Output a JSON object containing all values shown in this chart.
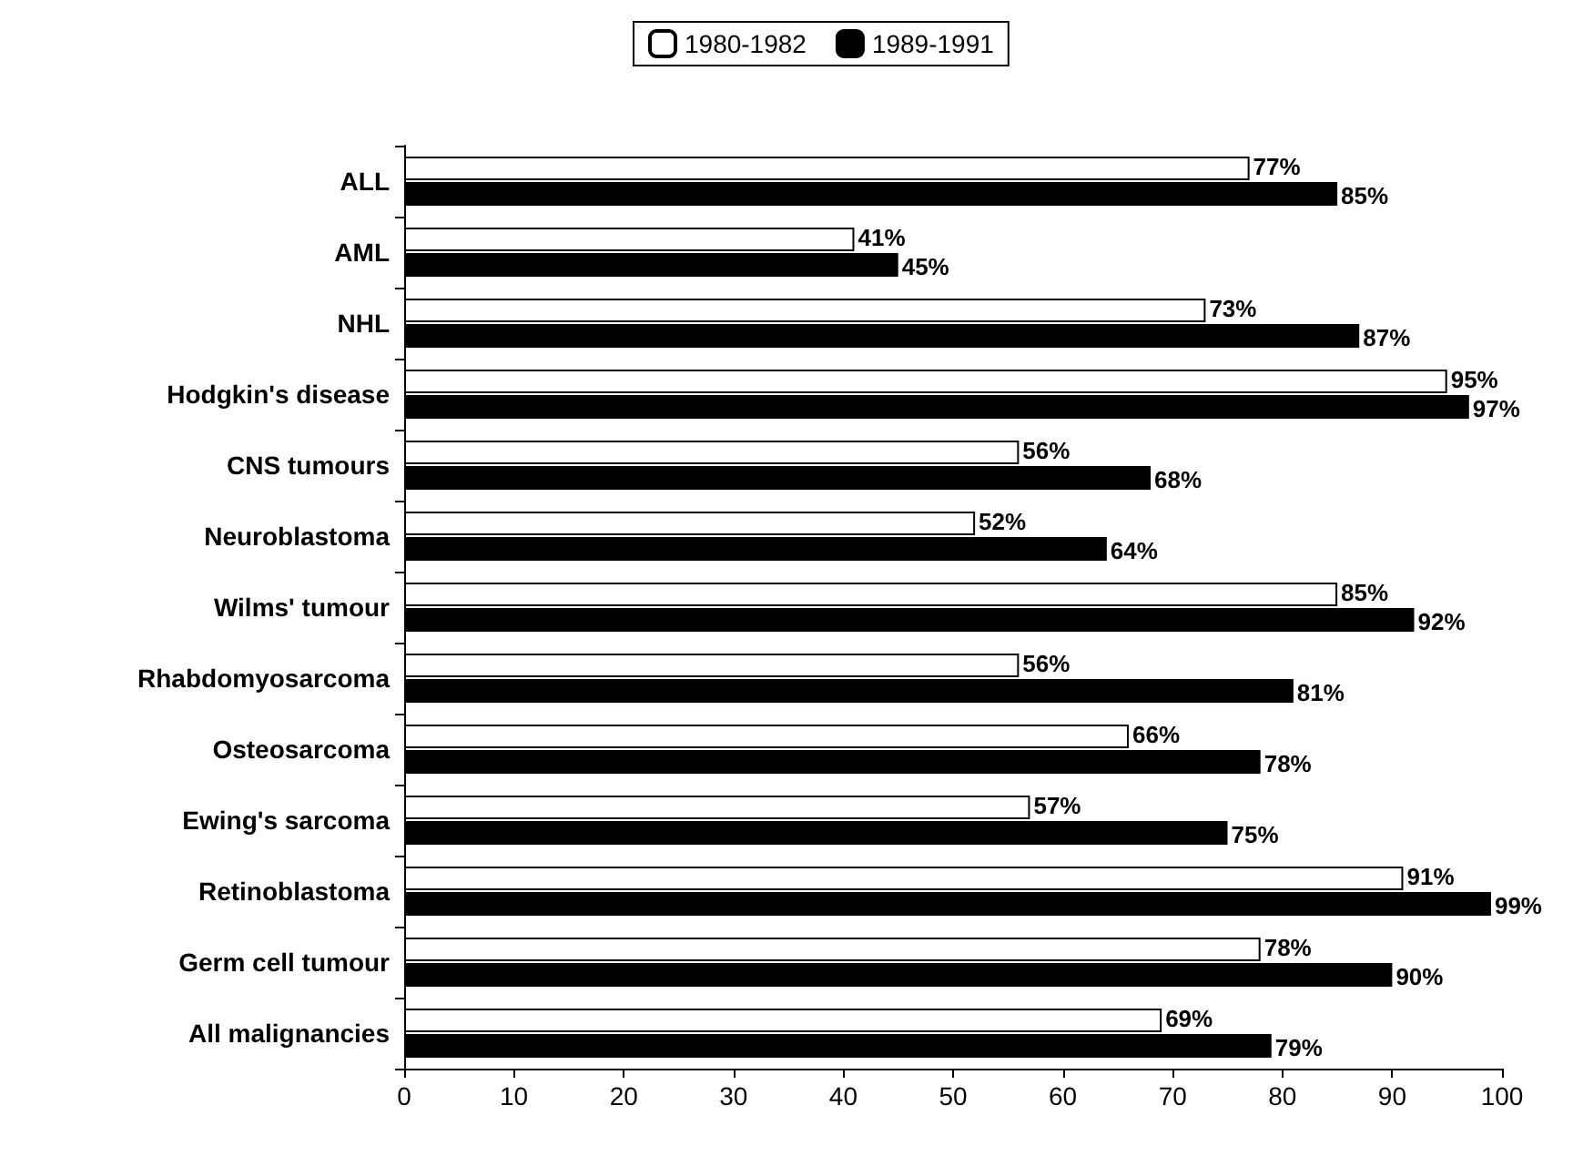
{
  "chart_data": {
    "type": "bar",
    "orientation": "horizontal",
    "categories": [
      "ALL",
      "AML",
      "NHL",
      "Hodgkin's disease",
      "CNS tumours",
      "Neuroblastoma",
      "Wilms' tumour",
      "Rhabdomyosarcoma",
      "Osteosarcoma",
      "Ewing's sarcoma",
      "Retinoblastoma",
      "Germ cell tumour",
      "All malignancies"
    ],
    "series": [
      {
        "name": "1980-1982",
        "color": "#ffffff",
        "values": [
          77,
          41,
          73,
          95,
          56,
          52,
          85,
          56,
          66,
          57,
          91,
          78,
          69
        ],
        "value_labels": [
          "77%",
          "41%",
          "73%",
          "95%",
          "56%",
          "52%",
          "85%",
          "56%",
          "66%",
          "57%",
          "91%",
          "78%",
          "69%"
        ]
      },
      {
        "name": "1989-1991",
        "color": "#000000",
        "values": [
          85,
          45,
          87,
          97,
          68,
          64,
          92,
          81,
          78,
          75,
          99,
          90,
          79
        ],
        "value_labels": [
          "85%",
          "45%",
          "87%",
          "97%",
          "68%",
          "64%",
          "92%",
          "81%",
          "78%",
          "75%",
          "99%",
          "90%",
          "79%"
        ]
      }
    ],
    "xlim": [
      0,
      100
    ],
    "xticks": [
      0,
      10,
      20,
      30,
      40,
      50,
      60,
      70,
      80,
      90,
      100
    ],
    "legend": "top",
    "grid": false
  }
}
